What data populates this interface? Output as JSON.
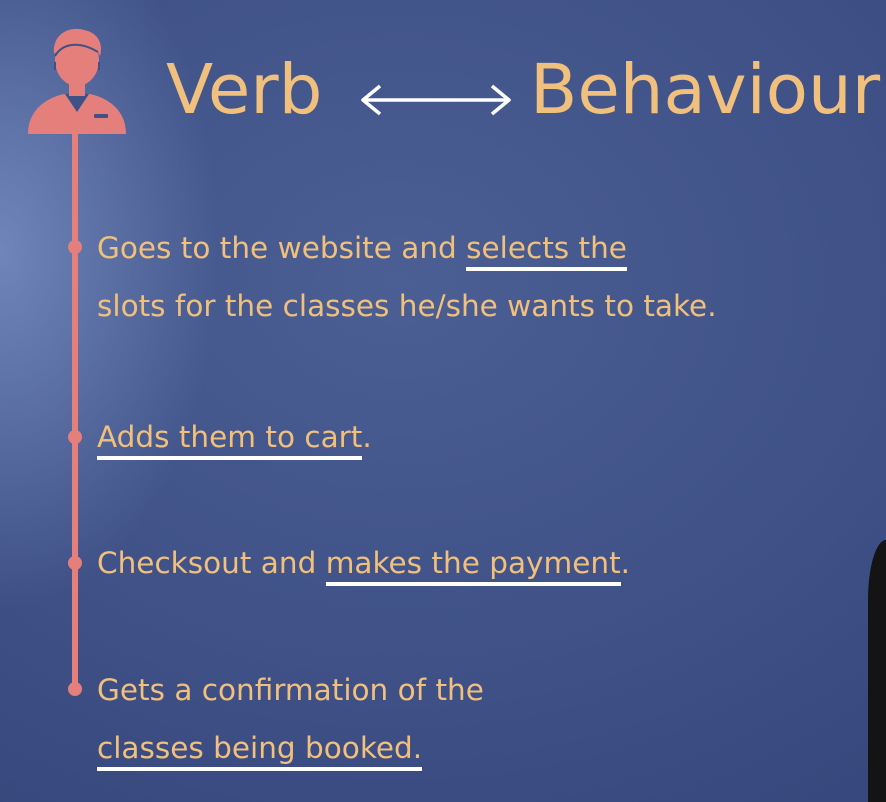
{
  "title": {
    "left": "Verb",
    "right": "Behaviour",
    "arrow_icon": "double-arrow-icon"
  },
  "avatar_icon": "person-icon",
  "colors": {
    "title": "#f1c07c",
    "timeline": "#e57f7b",
    "underline": "#ffffff",
    "background": "#3f5187"
  },
  "steps": [
    {
      "line1_a": "Goes to the website and ",
      "line1_b": "selects the",
      "line2": "slots for the classes he/she wants to take."
    },
    {
      "underlined": "Adds them to cart",
      "tail": "."
    },
    {
      "lead": "Checksout and ",
      "underlined": "makes the payment",
      "tail": "."
    },
    {
      "line1": "Gets a confirmation of the",
      "underlined": "classes being booked."
    }
  ]
}
